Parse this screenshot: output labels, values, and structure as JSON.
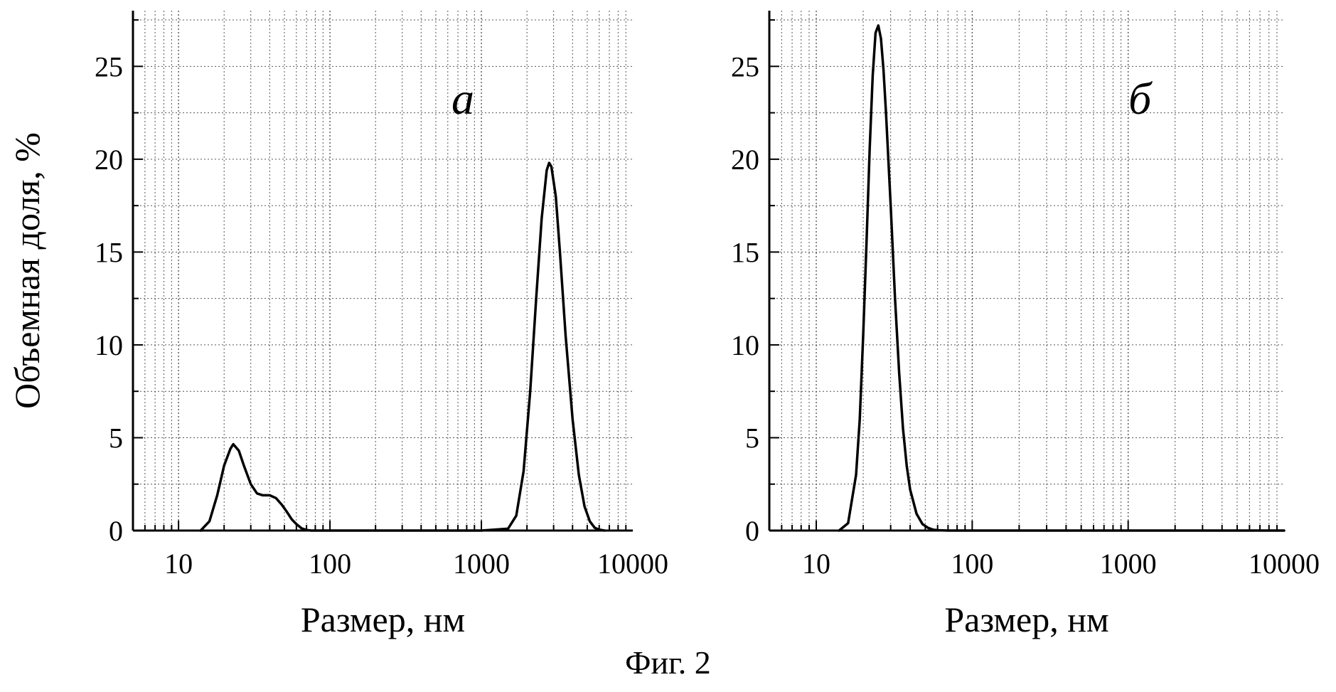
{
  "figure": {
    "caption": "Фиг. 2"
  },
  "chart_data": [
    {
      "type": "line",
      "panel_label": "а",
      "xlabel": "Размер, нм",
      "ylabel": "Объемная доля, %",
      "xscale": "log",
      "xlim": [
        5,
        10000
      ],
      "ylim": [
        0,
        28
      ],
      "xticks": [
        "10",
        "100",
        "1000",
        "10000"
      ],
      "yticks": [
        "0",
        "5",
        "10",
        "15",
        "20",
        "25"
      ],
      "grid": true,
      "series": [
        {
          "x": [
            14,
            16,
            18,
            20,
            22,
            23,
            25,
            27,
            30,
            33,
            36,
            40,
            44,
            48,
            52,
            56,
            60,
            65,
            70,
            75,
            80,
            100,
            500,
            1000,
            1500,
            1700,
            1900,
            2100,
            2300,
            2500,
            2700,
            2800,
            2900,
            3100,
            3300,
            3600,
            4000,
            4400,
            4800,
            5200,
            5600,
            6000,
            6500
          ],
          "y": [
            0,
            0.5,
            1.9,
            3.5,
            4.4,
            4.65,
            4.3,
            3.5,
            2.5,
            2.0,
            1.9,
            1.9,
            1.75,
            1.4,
            1.0,
            0.6,
            0.35,
            0.12,
            0.03,
            0,
            0,
            0,
            0,
            0,
            0.1,
            0.8,
            3.2,
            7.5,
            12.5,
            16.8,
            19.4,
            19.8,
            19.6,
            18.0,
            15.0,
            10.5,
            6.0,
            3.0,
            1.3,
            0.5,
            0.15,
            0.05,
            0
          ]
        }
      ]
    },
    {
      "type": "line",
      "panel_label": "б",
      "xlabel": "Размер, нм",
      "ylabel": "",
      "xscale": "log",
      "xlim": [
        5,
        10000
      ],
      "ylim": [
        0,
        28
      ],
      "xticks": [
        "10",
        "100",
        "1000",
        "10000"
      ],
      "yticks": [
        "0",
        "5",
        "10",
        "15",
        "20",
        "25"
      ],
      "grid": true,
      "series": [
        {
          "x": [
            14,
            16,
            18,
            19,
            20,
            21,
            22,
            23,
            24,
            25,
            26,
            27,
            28,
            30,
            32,
            34,
            36,
            38,
            40,
            44,
            48,
            52,
            56,
            60,
            70,
            80,
            100,
            1000,
            10000
          ],
          "y": [
            0,
            0.4,
            3.0,
            6.0,
            10.5,
            15.5,
            20.5,
            24.5,
            26.8,
            27.2,
            26.5,
            24.8,
            22.5,
            17.5,
            12.5,
            8.5,
            5.5,
            3.5,
            2.2,
            0.9,
            0.35,
            0.15,
            0.05,
            0.02,
            0,
            0,
            0,
            0,
            0
          ]
        }
      ]
    }
  ]
}
